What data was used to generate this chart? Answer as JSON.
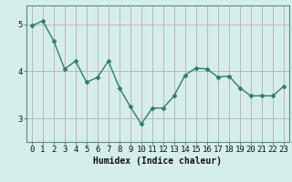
{
  "x": [
    0,
    1,
    2,
    3,
    4,
    5,
    6,
    7,
    8,
    9,
    10,
    11,
    12,
    13,
    14,
    15,
    16,
    17,
    18,
    19,
    20,
    21,
    22,
    23
  ],
  "y": [
    4.97,
    5.07,
    4.65,
    4.05,
    4.22,
    3.77,
    3.87,
    4.22,
    3.65,
    3.25,
    2.88,
    3.22,
    3.22,
    3.48,
    3.92,
    4.07,
    4.05,
    3.88,
    3.9,
    3.65,
    3.48,
    3.48,
    3.48,
    3.68
  ],
  "line_color": "#2e7d6e",
  "marker": "D",
  "markersize": 2.5,
  "linewidth": 1.0,
  "bg_color": "#d4eeeb",
  "grid_color_v": "#c8a8a8",
  "grid_color_h": "#c8a8a8",
  "xlabel": "Humidex (Indice chaleur)",
  "xlabel_fontsize": 7,
  "tick_fontsize": 6.5,
  "yticks": [
    3,
    4,
    5
  ],
  "ylim": [
    2.5,
    5.4
  ],
  "xlim": [
    -0.5,
    23.5
  ],
  "title": ""
}
